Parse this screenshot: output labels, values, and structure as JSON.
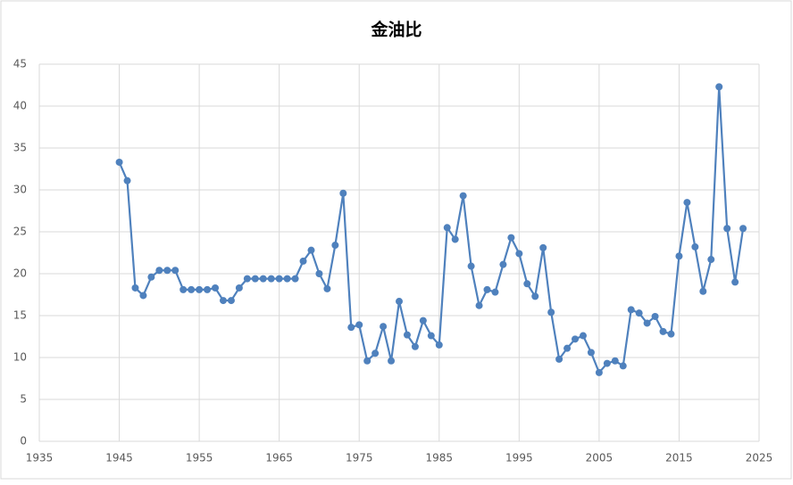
{
  "chart_data": {
    "type": "line",
    "title": "金油比",
    "x": [
      1945,
      1946,
      1947,
      1948,
      1949,
      1950,
      1951,
      1952,
      1953,
      1954,
      1955,
      1956,
      1957,
      1958,
      1959,
      1960,
      1961,
      1962,
      1963,
      1964,
      1965,
      1966,
      1967,
      1968,
      1969,
      1970,
      1971,
      1972,
      1973,
      1974,
      1975,
      1976,
      1977,
      1978,
      1979,
      1980,
      1981,
      1982,
      1983,
      1984,
      1985,
      1986,
      1987,
      1988,
      1989,
      1990,
      1991,
      1992,
      1993,
      1994,
      1995,
      1996,
      1997,
      1998,
      1999,
      2000,
      2001,
      2002,
      2003,
      2004,
      2005,
      2006,
      2007,
      2008,
      2009,
      2010,
      2011,
      2012,
      2013,
      2014,
      2015,
      2016,
      2017,
      2018,
      2019,
      2020,
      2021,
      2022,
      2023
    ],
    "values": [
      33.3,
      31.1,
      18.3,
      17.4,
      19.6,
      20.4,
      20.4,
      20.4,
      18.1,
      18.1,
      18.1,
      18.1,
      18.3,
      16.8,
      16.8,
      18.3,
      19.4,
      19.4,
      19.4,
      19.4,
      19.4,
      19.4,
      19.4,
      21.5,
      22.8,
      20.0,
      18.2,
      23.4,
      29.6,
      13.6,
      13.9,
      9.6,
      10.5,
      13.7,
      9.6,
      16.7,
      12.7,
      11.3,
      14.4,
      12.6,
      11.5,
      25.5,
      24.1,
      29.3,
      20.9,
      16.2,
      18.1,
      17.8,
      21.1,
      24.3,
      22.4,
      18.8,
      17.3,
      23.1,
      15.4,
      9.8,
      11.1,
      12.2,
      12.6,
      10.6,
      8.2,
      9.3,
      9.6,
      9.0,
      15.7,
      15.3,
      14.1,
      14.9,
      13.1,
      12.8,
      22.1,
      28.5,
      23.2,
      17.9,
      21.7,
      42.3,
      25.4,
      19.0,
      25.4
    ],
    "color": "#4f81bd",
    "xlim": [
      1935,
      2025
    ],
    "xticks": [
      1935,
      1945,
      1955,
      1965,
      1975,
      1985,
      1995,
      2005,
      2015,
      2025
    ],
    "ylim": [
      0,
      45
    ],
    "yticks": [
      0,
      5,
      10,
      15,
      20,
      25,
      30,
      35,
      40,
      45
    ],
    "grid": true
  }
}
